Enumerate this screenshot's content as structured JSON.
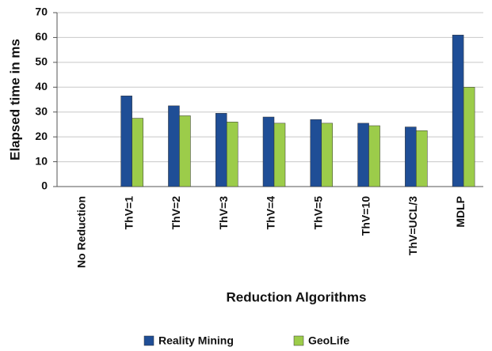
{
  "chart_data": {
    "type": "bar",
    "xlabel": "Reduction Algorithms",
    "ylabel": "Elapsed time in ms",
    "categories": [
      "No Reduction",
      "ThV=1",
      "ThV=2",
      "ThV=3",
      "ThV=4",
      "ThV=5",
      "ThV=10",
      "ThV=UCL/3",
      "MDLP"
    ],
    "series": [
      {
        "name": "Reality Mining",
        "color": "#1f4e96",
        "values": [
          null,
          36.5,
          32.5,
          29.5,
          28,
          27,
          25.5,
          24,
          61
        ]
      },
      {
        "name": "GeoLife",
        "color": "#9ccc4a",
        "values": [
          null,
          27.5,
          28.5,
          26,
          25.5,
          25.5,
          24.5,
          22.5,
          40
        ]
      }
    ],
    "ylim": [
      0,
      70
    ],
    "yticks": [
      0,
      10,
      20,
      30,
      40,
      50,
      60,
      70
    ],
    "grid": true,
    "legend": "bottom"
  }
}
